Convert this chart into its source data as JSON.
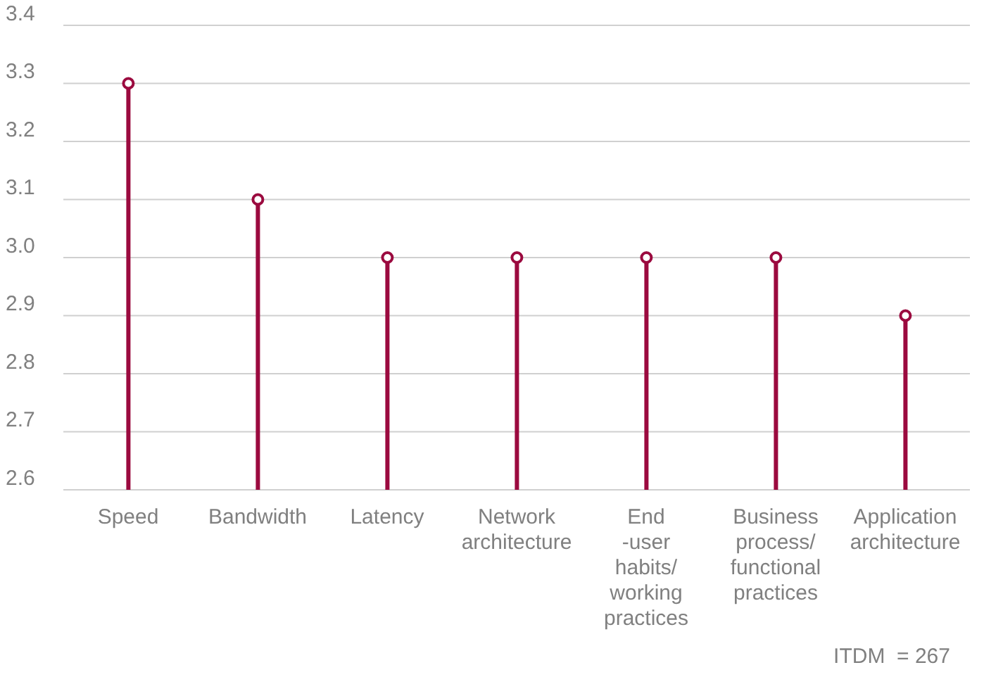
{
  "chart_data": {
    "type": "lollipop",
    "categories": [
      "Speed",
      "Bandwidth",
      "Latency",
      "Network architecture",
      "End -user habits/ working practices",
      "Business process/ functional practices",
      "Application architecture"
    ],
    "values": [
      3.3,
      3.1,
      3.0,
      3.0,
      3.0,
      3.0,
      2.9
    ],
    "color": "#9b0a3f",
    "ylim": [
      2.6,
      3.4
    ],
    "yticks": [
      2.6,
      2.7,
      2.8,
      2.9,
      {
        "value": 3.0,
        "label": "3.0"
      },
      3.1,
      3.2,
      3.3,
      3.4
    ],
    "grid": "y",
    "marker": "circle",
    "annotations": [
      "ITDM  = 267"
    ]
  }
}
